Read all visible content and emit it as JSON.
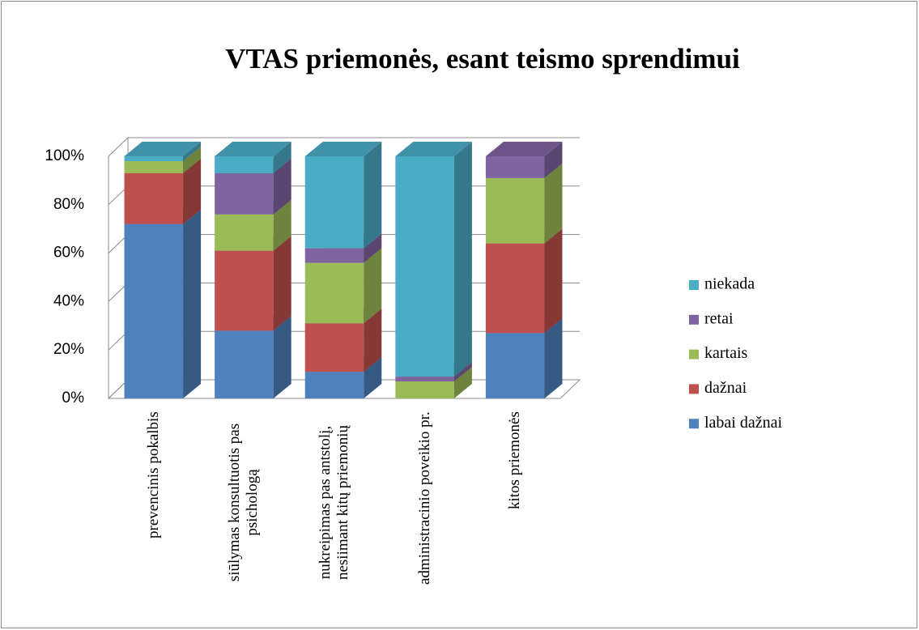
{
  "chart_data": {
    "type": "bar3d_stacked",
    "title": "VTAS priemonės, esant teismo sprendimui",
    "categories": [
      "prevencinis pokalbis",
      "siūlymas konsultuotis pas psichologą",
      "nukreipimas pas antstolį, nesiimant kitų priemonių",
      "administracinio poveikio pr.",
      "kitos priemonės"
    ],
    "series": [
      {
        "name": "labai dažnai",
        "color": "#4f81bd",
        "values": [
          72,
          28,
          11,
          0,
          27
        ]
      },
      {
        "name": "dažnai",
        "color": "#c0504d",
        "values": [
          21,
          33,
          20,
          0,
          37
        ]
      },
      {
        "name": "kartais",
        "color": "#9bbb59",
        "values": [
          5,
          15,
          25,
          7,
          27
        ]
      },
      {
        "name": "retai",
        "color": "#8064a2",
        "values": [
          0,
          17,
          6,
          2,
          9
        ]
      },
      {
        "name": "niekada",
        "color": "#4bacc6",
        "values": [
          2,
          7,
          38,
          91,
          0
        ]
      }
    ],
    "ylim": [
      0,
      100
    ],
    "yticks": [
      {
        "value": 0,
        "label": "0%"
      },
      {
        "value": 20,
        "label": "20%"
      },
      {
        "value": 40,
        "label": "40%"
      },
      {
        "value": 60,
        "label": "60%"
      },
      {
        "value": 80,
        "label": "80%"
      },
      {
        "value": 100,
        "label": "100%"
      }
    ],
    "grid": true,
    "legend": "right"
  }
}
